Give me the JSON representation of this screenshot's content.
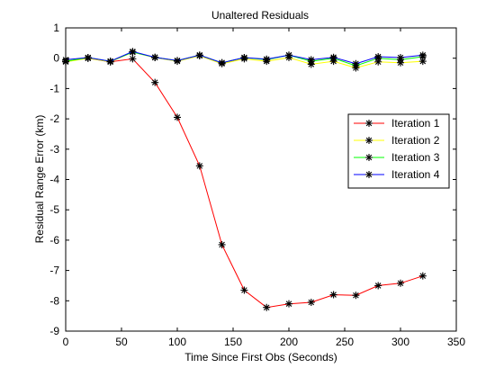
{
  "chart_data": {
    "type": "line",
    "title": "Unaltered Residuals",
    "xlabel": "Time Since First Obs (Seconds)",
    "ylabel": "Residual Range Error (km)",
    "xlim": [
      0,
      350
    ],
    "ylim": [
      -9,
      1
    ],
    "xticks": [
      0,
      50,
      100,
      150,
      200,
      250,
      300,
      350
    ],
    "yticks": [
      1,
      0,
      -1,
      -2,
      -3,
      -4,
      -5,
      -6,
      -7,
      -8,
      -9
    ],
    "grid": false,
    "legend_position": "center-right",
    "marker": "asterisk",
    "x": [
      0,
      20,
      40,
      60,
      80,
      100,
      120,
      140,
      160,
      180,
      200,
      220,
      240,
      260,
      280,
      300,
      320
    ],
    "series": [
      {
        "name": "Iteration 1",
        "color": "#ff0000",
        "values": [
          -0.1,
          0.0,
          -0.12,
          -0.02,
          -0.8,
          -1.95,
          -3.55,
          -6.15,
          -7.65,
          -8.22,
          -8.1,
          -8.05,
          -7.8,
          -7.82,
          -7.5,
          -7.42,
          -7.18
        ]
      },
      {
        "name": "Iteration 2",
        "color": "#ffff00",
        "values": [
          -0.12,
          0.0,
          -0.12,
          0.2,
          0.02,
          -0.1,
          0.08,
          -0.18,
          -0.02,
          -0.1,
          0.02,
          -0.2,
          -0.1,
          -0.32,
          -0.12,
          -0.15,
          -0.1
        ]
      },
      {
        "name": "Iteration 3",
        "color": "#00ff00",
        "values": [
          -0.1,
          0.02,
          -0.1,
          0.2,
          0.03,
          -0.08,
          0.1,
          -0.15,
          0.02,
          -0.05,
          0.1,
          -0.1,
          0.0,
          -0.25,
          0.0,
          -0.05,
          0.05
        ]
      },
      {
        "name": "Iteration 4",
        "color": "#0000ff",
        "values": [
          -0.05,
          0.02,
          -0.1,
          0.22,
          0.03,
          -0.08,
          0.1,
          -0.15,
          0.02,
          -0.03,
          0.1,
          -0.05,
          0.03,
          -0.18,
          0.05,
          0.02,
          0.1
        ]
      }
    ]
  }
}
